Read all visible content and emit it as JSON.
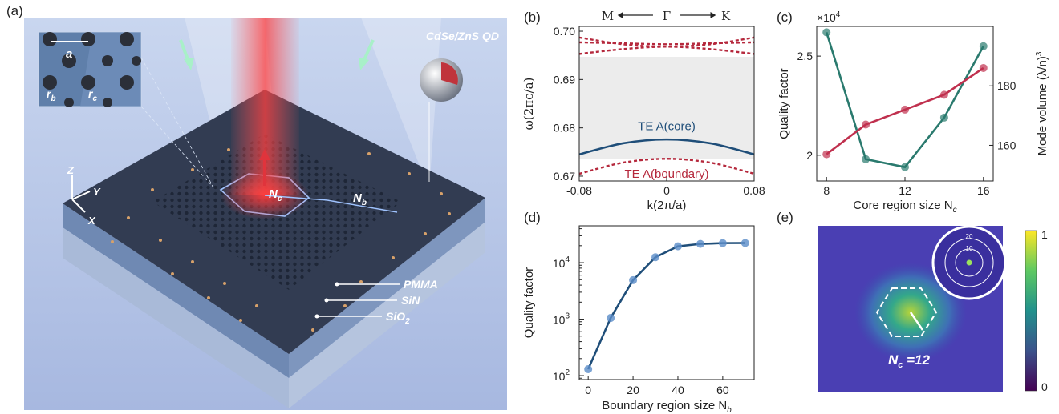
{
  "panels": {
    "a": "(a)",
    "b": "(b)",
    "c": "(c)",
    "d": "(d)",
    "e": "(e)"
  },
  "panel_a": {
    "qd_label": "CdSe/ZnS QD",
    "inset": {
      "a": "a",
      "rb": "r",
      "rb_sub": "b",
      "rc": "r",
      "rc_sub": "c"
    },
    "axes": {
      "z": "Z",
      "y": "Y",
      "x": "X"
    },
    "core_label": "N",
    "core_sub": "c",
    "boundary_label": "N",
    "boundary_sub": "b",
    "layers": [
      "PMMA",
      "SiN",
      "SiO",
      "2"
    ]
  },
  "chart_data": [
    {
      "id": "b",
      "type": "line",
      "top_labels": {
        "M": "M",
        "G": "Γ",
        "K": "K"
      },
      "xlabel": "k(2π/a)",
      "ylabel": "ω(2πc/a)",
      "xticks": [
        "-0.08",
        "0",
        "0.08"
      ],
      "yticks": [
        "0.67",
        "0.68",
        "0.69",
        "0.70"
      ],
      "xlim": [
        -0.08,
        0.08
      ],
      "ylim": [
        0.669,
        0.701
      ],
      "gap_band": [
        0.6735,
        0.6947
      ],
      "series": [
        {
          "name": "TE A(core)",
          "color": "#1f4e79",
          "style": "solid",
          "x": [
            -0.08,
            -0.04,
            0,
            0.04,
            0.08
          ],
          "y": [
            0.6745,
            0.6768,
            0.6776,
            0.6768,
            0.6745
          ]
        },
        {
          "name": "TE A(boundary)",
          "color": "#b5283c",
          "style": "dotted",
          "x": [
            -0.08,
            -0.04,
            0,
            0.04,
            0.08
          ],
          "y": [
            0.6705,
            0.6728,
            0.6736,
            0.6728,
            0.6705
          ]
        },
        {
          "name": "",
          "color": "#b5283c",
          "style": "dotted",
          "x": [
            -0.08,
            -0.04,
            0,
            0.04,
            0.08
          ],
          "y": [
            0.6977,
            0.6975,
            0.6973,
            0.6975,
            0.6977
          ]
        },
        {
          "name": "",
          "color": "#b5283c",
          "style": "dotted",
          "x": [
            -0.08,
            -0.04,
            0,
            0.04,
            0.08
          ],
          "y": [
            0.6987,
            0.6973,
            0.6968,
            0.6973,
            0.6987
          ]
        },
        {
          "name": "",
          "color": "#b5283c",
          "style": "dotted",
          "x": [
            -0.08,
            -0.04,
            0,
            0.04,
            0.08
          ],
          "y": [
            0.6953,
            0.6963,
            0.6968,
            0.6963,
            0.6953
          ]
        }
      ]
    },
    {
      "id": "c",
      "type": "line",
      "xlabel": "Core region size N",
      "xlabel_sub": "c",
      "ylabel_left": "Quality factor",
      "ylabel_right": "Mode volume (λ/n)",
      "ylabel_right_sup": "3",
      "multiplier": "×10",
      "multiplier_sup": "4",
      "xticks": [
        "8",
        "12",
        "16"
      ],
      "yticks_left": [
        "2",
        "2.5"
      ],
      "yticks_right": [
        "160",
        "180"
      ],
      "xlim": [
        7.5,
        16.5
      ],
      "ylim_left": [
        1.87,
        2.65
      ],
      "ylim_right": [
        148,
        200
      ],
      "series": [
        {
          "name": "Quality factor",
          "color": "#2a7a6e",
          "axis": "left",
          "x": [
            8,
            10,
            12,
            14,
            16
          ],
          "y": [
            2.62,
            1.98,
            1.94,
            2.19,
            2.55
          ]
        },
        {
          "name": "Mode volume",
          "color": "#c0304e",
          "axis": "right",
          "x": [
            8,
            10,
            12,
            14,
            16
          ],
          "y": [
            157,
            167,
            172,
            177,
            186
          ]
        }
      ]
    },
    {
      "id": "d",
      "type": "line",
      "xlabel": "Boundary region size N",
      "xlabel_sub": "b",
      "ylabel": "Quality factor",
      "yscale": "log",
      "xticks": [
        "0",
        "20",
        "40",
        "60"
      ],
      "yticks": [
        {
          "b": "10",
          "e": "2"
        },
        {
          "b": "10",
          "e": "3"
        },
        {
          "b": "10",
          "e": "4"
        }
      ],
      "xlim": [
        -4,
        74
      ],
      "ylim": [
        85,
        45000
      ],
      "series": [
        {
          "name": "",
          "color": "#1f4e79",
          "x": [
            0,
            10,
            20,
            30,
            40,
            50,
            60,
            70
          ],
          "y": [
            130,
            1050,
            4900,
            12500,
            19500,
            21500,
            22200,
            22300
          ]
        }
      ]
    },
    {
      "id": "e",
      "type": "heatmap",
      "nc_label": "N",
      "nc_sub": "c",
      "nc_value": " =12",
      "colorbar": {
        "max": "1",
        "min": "0"
      },
      "ring_labels": [
        "20",
        "10"
      ]
    }
  ]
}
